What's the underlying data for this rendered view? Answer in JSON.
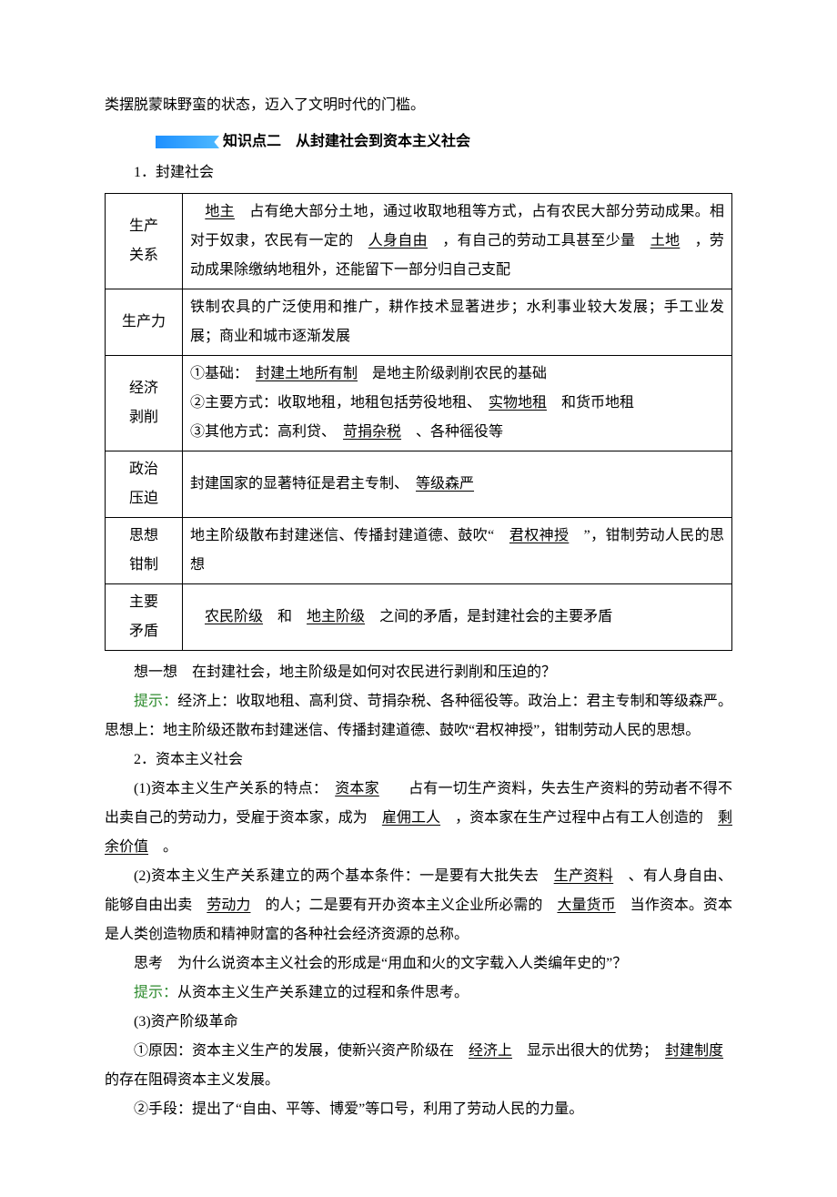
{
  "intro_tail": "类摆脱蒙昧野蛮的状态，迈入了文明时代的门槛。",
  "section2": {
    "title": "知识点二　从封建社会到资本主义社会"
  },
  "feudal": {
    "heading": "1．封建社会",
    "rows": [
      {
        "label_l1": "生产",
        "label_l2": "关系",
        "pre1": "　",
        "u1": "地主",
        "mid1": "　占有绝大部分土地，通过收取地租等方式，占有农民大部分劳动成果。相对于奴隶，农民有一定的　",
        "u2": "人身自由",
        "mid2": "　，有自己的劳动工具甚至少量　",
        "u3": "土地",
        "post": "　，劳动成果除缴纳地租外，还能留下一部分归自己支配"
      },
      {
        "label": "生产力",
        "text": "铁制农具的广泛使用和推广，耕作技术显著进步；水利事业较大发展；手工业发展；商业和城市逐渐发展"
      },
      {
        "label_l1": "经济",
        "label_l2": "剥削",
        "line1_pre": "①基础：　",
        "line1_u": "封建土地所有制",
        "line1_post": "　是地主阶级剥削农民的基础",
        "line2_pre": "②主要方式：收取地租，地租包括劳役地租、　",
        "line2_u": "实物地租",
        "line2_post": "　和货币地租",
        "line3_pre": "③其他方式：高利贷、　",
        "line3_u": "苛捐杂税",
        "line3_post": "　、各种徭役等"
      },
      {
        "label_l1": "政治",
        "label_l2": "压迫",
        "pre": "封建国家的显著特征是君主专制、　",
        "u": "等级森严",
        "post": "　"
      },
      {
        "label_l1": "思想",
        "label_l2": "钳制",
        "pre": "地主阶级散布封建迷信、传播封建道德、鼓吹“　",
        "u": "君权神授",
        "post": "　”，钳制劳动人民的思想"
      },
      {
        "label_l1": "主要",
        "label_l2": "矛盾",
        "pre": "　",
        "u1": "农民阶级",
        "mid": "　和　",
        "u2": "地主阶级",
        "post": "　之间的矛盾，是封建社会的主要矛盾"
      }
    ]
  },
  "think1": {
    "label": "想一想",
    "q": "　在封建社会，地主阶级是如何对农民进行剥削和压迫的？",
    "hint_label": "提示：",
    "hint_text": "经济上：收取地租、高利贷、苛捐杂税、各种徭役等。政治上：君主专制和等级森严。思想上：地主阶级还散布封建迷信、传播封建道德、鼓吹“君权神授”，钳制劳动人民的思想。"
  },
  "cap": {
    "heading": "2．资本主义社会",
    "p1": {
      "pre": "(1)资本主义生产关系的特点：　",
      "u1": "资本家",
      "mid1": "　　占有一切生产资料，失去生产资料的劳动者不得不出卖自己的劳动力，受雇于资本家，成为　",
      "u2": "雇佣工人",
      "mid2": "　，资本家在生产过程中占有工人创造的　",
      "u3": "剩余价值",
      "post": "　。"
    },
    "p2": {
      "pre": "(2)资本主义生产关系建立的两个基本条件：一是要有大批失去　",
      "u1": "生产资料",
      "mid1": "　、有人身自由、能够自由出卖　",
      "u2": "劳动力",
      "mid2": "　的人；二是要有开办资本主义企业所必需的　",
      "u3": "大量货币",
      "post": "　当作资本。资本是人类创造物质和精神财富的各种社会经济资源的总称。"
    },
    "think2": {
      "label": "思考",
      "q": "　为什么说资本主义社会的形成是“用血和火的文字载入人类编年史的”？",
      "hint_label": "提示：",
      "hint_text": "从资本主义生产关系建立的过程和条件思考。"
    },
    "p3_head": "(3)资产阶级革命",
    "p3_1": {
      "pre": "①原因：资本主义生产的发展，使新兴资产阶级在　",
      "u1": "经济上",
      "mid": "　显示出很大的优势；　",
      "u2": "封建制度",
      "post": "　的存在阻碍资本主义发展。"
    },
    "p3_2": "②手段：提出了“自由、平等、博爱”等口号，利用了劳动人民的力量。"
  }
}
